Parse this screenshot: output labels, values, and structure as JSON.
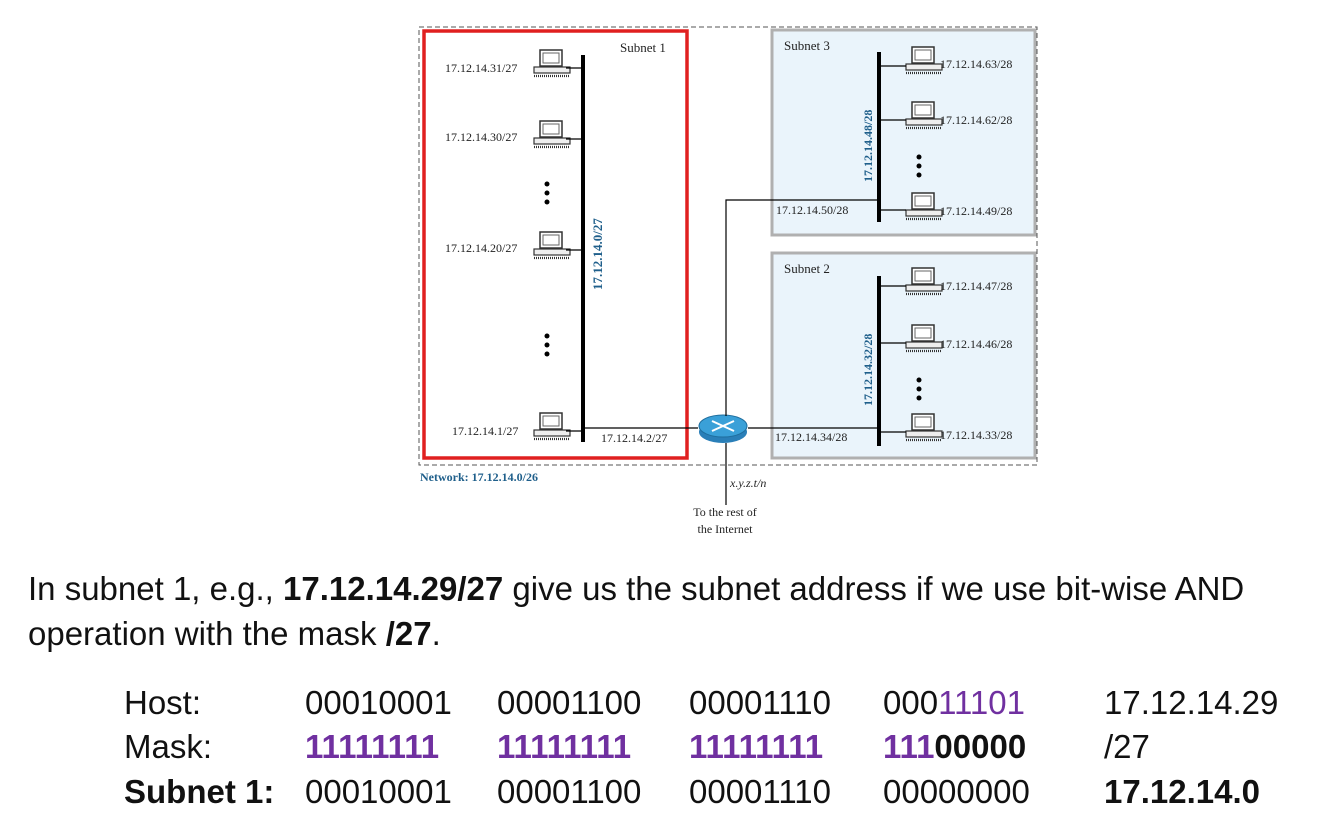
{
  "diagram": {
    "subnet1_label": "Subnet 1",
    "subnet2_label": "Subnet 2",
    "subnet3_label": "Subnet 3",
    "subnet1_bus": "17.12.14.0/27",
    "subnet2_bus": "17.12.14.32/28",
    "subnet3_bus": "17.12.14.48/28",
    "network_label": "Network: 17.12.14.0/26",
    "router_ext": "x.y.z.t/n",
    "internet_line1": "To the rest of",
    "internet_line2": "the Internet",
    "router_if1": "17.12.14.2/27",
    "router_if2": "17.12.14.34/28",
    "router_if3": "17.12.14.50/28",
    "subnet1_hosts": [
      "17.12.14.31/27",
      "17.12.14.30/27",
      "17.12.14.20/27",
      "17.12.14.1/27"
    ],
    "subnet3_hosts": [
      "17.12.14.63/28",
      "17.12.14.62/28",
      "17.12.14.49/28"
    ],
    "subnet2_hosts": [
      "17.12.14.47/28",
      "17.12.14.46/28",
      "17.12.14.33/28"
    ]
  },
  "caption": {
    "part1": "In subnet 1, e.g., ",
    "example": "17.12.14.29/27",
    "part2": " give us the subnet address if we use bit-wise AND operation with the mask ",
    "mask": "/27",
    "part3": "."
  },
  "table": {
    "host_label": "Host:",
    "mask_label": "Mask:",
    "subnet_label": "Subnet 1:",
    "host_o1": "00010001",
    "host_o2": "00001100",
    "host_o3": "00001110",
    "host_o4_a": "000",
    "host_o4_b": "11101",
    "host_dec": "17.12.14.29",
    "mask_o1": "11111111",
    "mask_o2": "11111111",
    "mask_o3": "11111111",
    "mask_o4_a": "111",
    "mask_o4_b": "00000",
    "mask_dec": "/27",
    "sub_o1": "00010001",
    "sub_o2": "00001100",
    "sub_o3": "00001110",
    "sub_o4": "00000000",
    "sub_dec": "17.12.14.0"
  },
  "colors": {
    "subnet1_border": "#e02020",
    "subnet_box_fill": "#eaf4fb",
    "subnet_box_border": "#b0b0b0",
    "bus_label": "#1f5f8b",
    "purple": "#7030a0",
    "router": "#3aa0d8"
  }
}
